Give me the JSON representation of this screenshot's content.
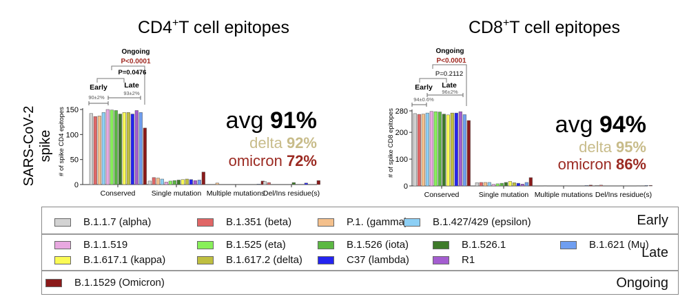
{
  "row_label": "SARS-CoV-2\nspike",
  "chart_data": [
    {
      "type": "bar",
      "title": "CD4+T cell epitopes",
      "title_main": "CD4",
      "title_sup": "+",
      "title_rest": "T cell epitopes",
      "ylabel": "# of spike CD4 epitopes",
      "ylim": [
        0,
        150
      ],
      "yticks": [
        0,
        50,
        100,
        150
      ],
      "categories": [
        "Conserved",
        "Single mutation",
        "Multiple mutations",
        "Del/Ins residue(s)"
      ],
      "series": [
        {
          "name": "B.1.1.7 (alpha)",
          "values": [
            142,
            7,
            0,
            6
          ]
        },
        {
          "name": "B.1.351 (beta)",
          "values": [
            136,
            14,
            0,
            4
          ]
        },
        {
          "name": "P.1. (gamma)",
          "values": [
            137,
            13,
            3,
            0
          ]
        },
        {
          "name": "B.1.427/429 (epsilon)",
          "values": [
            144,
            11,
            0,
            0
          ]
        },
        {
          "name": "B.1.1.519",
          "values": [
            150,
            5,
            0,
            0
          ]
        },
        {
          "name": "B.1.525 (eta)",
          "values": [
            149,
            7,
            0,
            0
          ]
        },
        {
          "name": "B.1.526 (iota)",
          "values": [
            148,
            8,
            0,
            0
          ]
        },
        {
          "name": "B.1.526.1",
          "values": [
            141,
            9,
            0,
            4
          ]
        },
        {
          "name": "B.1.617.1 (kappa)",
          "values": [
            144,
            10,
            0,
            0
          ]
        },
        {
          "name": "B.1.617.2 (delta)",
          "values": [
            144,
            11,
            0,
            0
          ]
        },
        {
          "name": "C37 (lambda)",
          "values": [
            141,
            10,
            0,
            3
          ]
        },
        {
          "name": "R1",
          "values": [
            148,
            8,
            0,
            0
          ]
        },
        {
          "name": "B.1.621 (Mu)",
          "values": [
            144,
            9,
            1,
            0
          ]
        },
        {
          "name": "B.1.1529 (Omicron)",
          "values": [
            113,
            25,
            7,
            8
          ]
        }
      ],
      "annotations": {
        "ongoing": "Ongoing",
        "p_ongoing": "P<0.0001",
        "p_early_late": "P=0.0476",
        "early": "Early",
        "early_pct": "90±2%",
        "late": "Late",
        "late_pct": "93±2%"
      },
      "summary": {
        "avg_label": "avg",
        "avg_value": "91%",
        "delta_label": "delta",
        "delta_value": "92%",
        "omicron_label": "omicron",
        "omicron_value": "72%"
      }
    },
    {
      "type": "bar",
      "title": "CD8+T cell epitopes",
      "title_main": "CD8",
      "title_sup": "+",
      "title_rest": "T cell epitopes",
      "ylabel": "# of spike CD8 epitopes",
      "ylim": [
        0,
        280
      ],
      "yticks": [
        0,
        100,
        200,
        280
      ],
      "categories": [
        "Conserved",
        "Single mutation",
        "Multiple mutations",
        "Del/Ins residue(s)"
      ],
      "series": [
        {
          "name": "B.1.1.7 (alpha)",
          "values": [
            270,
            12,
            0,
            2
          ]
        },
        {
          "name": "B.1.351 (beta)",
          "values": [
            267,
            13,
            0,
            3
          ]
        },
        {
          "name": "P.1. (gamma)",
          "values": [
            268,
            13,
            1,
            0
          ]
        },
        {
          "name": "B.1.427/429 (epsilon)",
          "values": [
            272,
            13,
            0,
            0
          ]
        },
        {
          "name": "B.1.1.519",
          "values": [
            278,
            6,
            0,
            0
          ]
        },
        {
          "name": "B.1.525 (eta)",
          "values": [
            277,
            8,
            0,
            0
          ]
        },
        {
          "name": "B.1.526 (iota)",
          "values": [
            276,
            10,
            0,
            1
          ]
        },
        {
          "name": "B.1.526.1",
          "values": [
            268,
            13,
            1,
            0
          ]
        },
        {
          "name": "B.1.617.1 (kappa)",
          "values": [
            265,
            17,
            0,
            0
          ]
        },
        {
          "name": "B.1.617.2 (delta)",
          "values": [
            272,
            12,
            0,
            0
          ]
        },
        {
          "name": "C37 (lambda)",
          "values": [
            272,
            10,
            0,
            1
          ]
        },
        {
          "name": "R1",
          "values": [
            277,
            7,
            0,
            1
          ]
        },
        {
          "name": "B.1.621 (Mu)",
          "values": [
            266,
            13,
            2,
            2
          ]
        },
        {
          "name": "B.1.1529 (Omicron)",
          "values": [
            244,
            31,
            3,
            2
          ]
        }
      ],
      "annotations": {
        "ongoing": "Ongoing",
        "p_ongoing": "P<0.0001",
        "p_early_late": "P=0.2112",
        "early": "Early",
        "early_pct": "94±0.6%",
        "late": "Late",
        "late_pct": "96±2%"
      },
      "summary": {
        "avg_label": "avg",
        "avg_value": "94%",
        "delta_label": "delta",
        "delta_value": "95%",
        "omicron_label": "omicron",
        "omicron_value": "86%"
      }
    }
  ],
  "colors": [
    "#d3d3d3",
    "#e06666",
    "#f4c08c",
    "#8ccff5",
    "#e8a8e0",
    "#88f05a",
    "#5cb843",
    "#3e7a2a",
    "#fbfb55",
    "#bfbf40",
    "#2424f0",
    "#a45dd0",
    "#6f9ef0",
    "#8b1a1a"
  ],
  "summary_colors": {
    "avg": "#000000",
    "delta": "#c8bc8a",
    "omicron": "#9b2a22"
  },
  "legend": {
    "groups": [
      {
        "label": "Early",
        "items": [
          "B.1.1.7 (alpha)",
          "B.1.351 (beta)",
          "P.1. (gamma)",
          "B.1.427/429 (epsilon)"
        ]
      },
      {
        "label": "Late",
        "items": [
          "B.1.1.519",
          "B.1.525 (eta)",
          "B.1.526 (iota)",
          "B.1.526.1",
          "B.1.621 (Mu)",
          "B.1.617.1 (kappa)",
          "B.1.617.2 (delta)",
          "C37 (lambda)",
          "R1"
        ]
      },
      {
        "label": "Ongoing",
        "items": [
          "B.1.1529 (Omicron)"
        ]
      }
    ]
  }
}
